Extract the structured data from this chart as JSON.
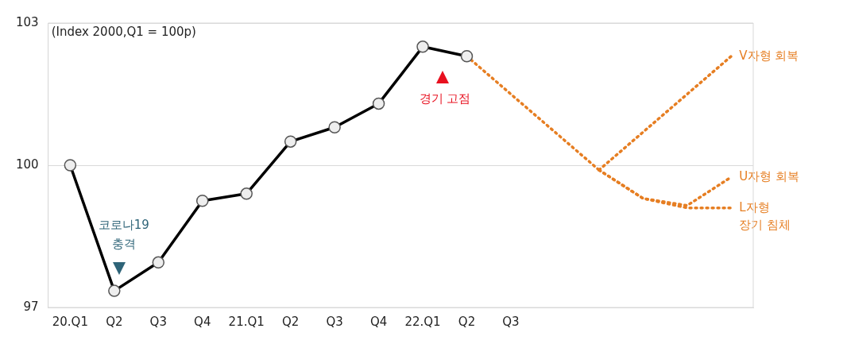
{
  "chart_data": {
    "type": "line",
    "categories": [
      "20.Q1",
      "Q2",
      "Q3",
      "Q4",
      "21.Q1",
      "Q2",
      "Q3",
      "Q4",
      "22.Q1",
      "Q2",
      "Q3",
      null,
      null,
      null,
      null,
      null
    ],
    "series": [
      {
        "color": "#000000",
        "values": [
          100,
          97.35,
          97.95,
          99.25,
          99.4,
          100.5,
          100.8,
          101.3,
          102.5,
          102.3,
          null,
          null,
          null,
          null,
          null,
          null
        ]
      },
      {
        "color": "#e67e22",
        "marker": "none",
        "line_style": "dotted",
        "values": [
          null,
          null,
          null,
          null,
          null,
          null,
          null,
          null,
          null,
          102.3,
          101.5,
          100.7,
          99.9,
          null,
          null,
          null
        ]
      },
      {
        "name": "V자형 회복",
        "color": "#e67e22",
        "marker": "none",
        "line_style": "dotted",
        "values": [
          null,
          null,
          null,
          null,
          null,
          null,
          null,
          null,
          null,
          null,
          null,
          null,
          99.9,
          100.7,
          101.5,
          102.3
        ]
      },
      {
        "name": "U자형 회복",
        "color": "#e67e22",
        "marker": "none",
        "line_style": "dotted",
        "values": [
          null,
          null,
          null,
          null,
          null,
          null,
          null,
          null,
          null,
          null,
          null,
          null,
          99.9,
          99.3,
          99.15,
          99.75
        ]
      },
      {
        "name": "L자형\n장기 침체",
        "color": "#e67e22",
        "marker": "none",
        "line_style": "dotted",
        "values": [
          null,
          null,
          null,
          null,
          null,
          null,
          null,
          null,
          null,
          null,
          null,
          null,
          99.9,
          99.3,
          99.1,
          99.1
        ]
      }
    ],
    "ylim": [
      97,
      103
    ],
    "yticks": [
      97,
      100,
      103
    ],
    "grid": "y",
    "legend": false,
    "marker": "circle",
    "annotations": [
      "(Index 2000,Q1 = 100p)",
      "코로나19\n충격",
      "경기 고점"
    ]
  }
}
